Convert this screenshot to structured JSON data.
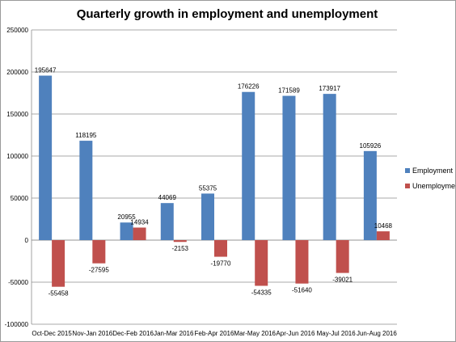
{
  "chart_data": {
    "type": "bar",
    "title": "Quarterly growth in employment and unemployment",
    "categories": [
      "Oct-Dec 2015",
      "Nov-Jan 2016",
      "Dec-Feb 2016",
      "Jan-Mar 2016",
      "Feb-Apr 2016",
      "Mar-May 2016",
      "Apr-Jun 2016",
      "May-Jul 2016",
      "Jun-Aug 2016"
    ],
    "series": [
      {
        "name": "Employment",
        "color": "#4f81bd",
        "values": [
          195647,
          118195,
          20955,
          44069,
          55375,
          176226,
          171589,
          173917,
          105926
        ]
      },
      {
        "name": "Unemployment",
        "color": "#c0504d",
        "values": [
          -55458,
          -27595,
          14934,
          -2153,
          -19770,
          -54335,
          -51640,
          -39021,
          10468
        ]
      }
    ],
    "data_labels": {
      "Employment": [
        "195647",
        "118195",
        "20955",
        "44069",
        "55375",
        "176226",
        "171589",
        "173917",
        "105926"
      ],
      "Unemployment": [
        "-55458",
        "-27595",
        "14934",
        "-2153",
        "-19770",
        "-54335",
        "-51640",
        "-39021",
        "10468"
      ]
    },
    "ylim": [
      -100000,
      250000
    ],
    "yticks": [
      250000,
      200000,
      150000,
      100000,
      50000,
      0,
      -50000,
      -100000
    ],
    "ytick_labels": [
      "250000",
      "200000",
      "150000",
      "100000",
      "50000",
      "0",
      "-50000",
      "-100000"
    ],
    "grid": true,
    "legend": "right"
  }
}
